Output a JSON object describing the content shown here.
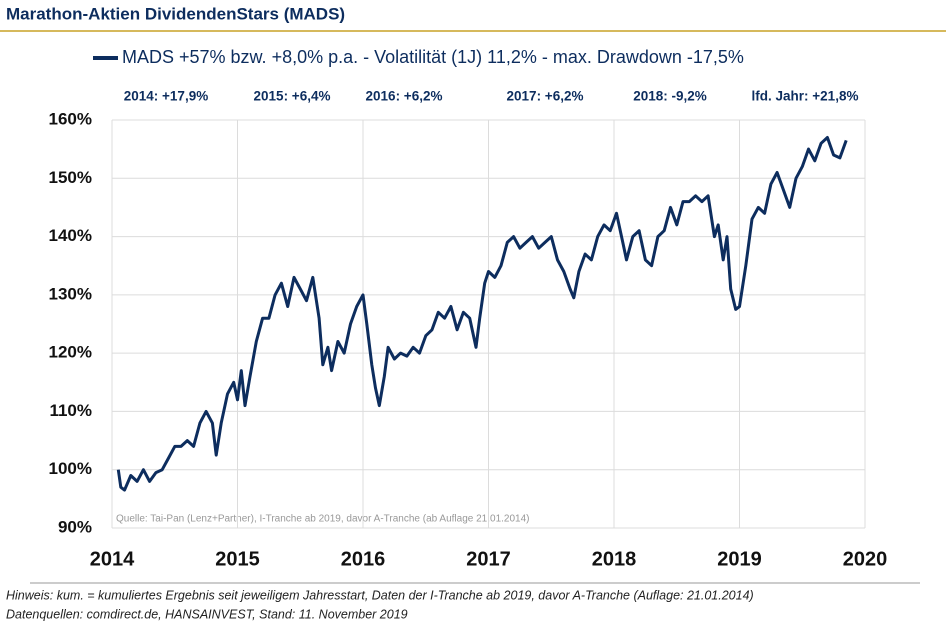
{
  "chart_data": {
    "type": "line",
    "title": "Marathon-Aktien DividendenStars (MADS)",
    "annotations": [
      "2014: +17,9%",
      "2015: +6,4%",
      "2016: +6,2%",
      "2017: +6,2%",
      "2018: -9,2%",
      "lfd. Jahr: +21,8%"
    ],
    "source_note": "Quelle: Tai-Pan (Lenz+Partner), I-Tranche ab 2019, davor A-Tranche (ab Auflage 21.01.2014)",
    "footnotes": [
      "Hinweis: kum. = kumuliertes Ergebnis seit jeweiligem Jahresstart, Daten der I-Tranche ab 2019, davor A-Tranche (Auflage: 21.01.2014)",
      "Datenquellen: comdirect.de, HANSAINVEST, Stand: 11. November 2019"
    ],
    "x": [
      2014.05,
      2014.07,
      2014.1,
      2014.15,
      2014.2,
      2014.25,
      2014.3,
      2014.35,
      2014.4,
      2014.45,
      2014.5,
      2014.55,
      2014.6,
      2014.65,
      2014.7,
      2014.75,
      2014.8,
      2014.83,
      2014.87,
      2014.92,
      2014.97,
      2015.0,
      2015.03,
      2015.06,
      2015.1,
      2015.15,
      2015.2,
      2015.25,
      2015.3,
      2015.35,
      2015.4,
      2015.45,
      2015.5,
      2015.55,
      2015.6,
      2015.65,
      2015.68,
      2015.72,
      2015.75,
      2015.8,
      2015.85,
      2015.9,
      2015.95,
      2016.0,
      2016.03,
      2016.07,
      2016.1,
      2016.13,
      2016.17,
      2016.2,
      2016.25,
      2016.3,
      2016.35,
      2016.4,
      2016.45,
      2016.5,
      2016.55,
      2016.6,
      2016.65,
      2016.7,
      2016.75,
      2016.8,
      2016.85,
      2016.9,
      2016.93,
      2016.97,
      2017.0,
      2017.05,
      2017.1,
      2017.15,
      2017.2,
      2017.25,
      2017.3,
      2017.35,
      2017.4,
      2017.45,
      2017.5,
      2017.55,
      2017.6,
      2017.65,
      2017.68,
      2017.72,
      2017.77,
      2017.82,
      2017.87,
      2017.92,
      2017.97,
      2018.02,
      2018.07,
      2018.1,
      2018.15,
      2018.2,
      2018.25,
      2018.3,
      2018.35,
      2018.4,
      2018.45,
      2018.5,
      2018.55,
      2018.6,
      2018.65,
      2018.7,
      2018.75,
      2018.8,
      2018.83,
      2018.87,
      2018.9,
      2018.93,
      2018.97,
      2019.0,
      2019.05,
      2019.1,
      2019.15,
      2019.2,
      2019.25,
      2019.3,
      2019.35,
      2019.4,
      2019.45,
      2019.5,
      2019.55,
      2019.6,
      2019.65,
      2019.7,
      2019.75,
      2019.8,
      2019.85
    ],
    "series": [
      {
        "name": "MADS +57% bzw. +8,0% p.a. - Volatilität (1J) 11,2% - max. Drawdown -17,5%",
        "color": "#0d2d5e",
        "values": [
          100,
          97,
          96.5,
          99,
          98,
          100,
          98,
          99.5,
          100,
          102,
          104,
          104,
          105,
          104,
          108,
          110,
          108,
          102.5,
          108,
          113,
          115,
          112,
          117,
          111,
          116,
          122,
          126,
          126,
          130,
          132,
          128,
          133,
          131,
          129,
          133,
          126,
          118,
          121,
          117,
          122,
          120,
          125,
          128,
          130,
          125,
          118,
          114,
          111,
          116,
          121,
          119,
          120,
          119.5,
          121,
          120,
          123,
          124,
          127,
          126,
          128,
          124,
          127,
          126,
          121,
          126,
          132,
          134,
          133,
          135,
          139,
          140,
          138,
          139,
          140,
          138,
          139,
          140,
          136,
          134,
          131,
          129.5,
          134,
          137,
          136,
          140,
          142,
          141,
          144,
          139,
          136,
          140,
          141,
          136,
          135,
          140,
          141,
          145,
          142,
          146,
          146,
          147,
          146,
          147,
          140,
          142,
          136,
          140,
          131,
          127.5,
          128,
          135,
          143,
          145,
          144,
          149,
          151,
          148,
          145,
          150,
          152,
          155,
          153,
          156,
          157,
          154,
          153.5,
          156.5
        ]
      }
    ],
    "xlim": [
      2014,
      2020
    ],
    "xticks": [
      2014,
      2015,
      2016,
      2017,
      2018,
      2019,
      2020
    ],
    "ylim": [
      90,
      160
    ],
    "yticks": [
      {
        "value": 90,
        "label": "90%"
      },
      {
        "value": 100,
        "label": "100%"
      },
      {
        "value": 110,
        "label": "110%"
      },
      {
        "value": 120,
        "label": "120%"
      },
      {
        "value": 130,
        "label": "130%"
      },
      {
        "value": 140,
        "label": "140%"
      },
      {
        "value": 150,
        "label": "150%"
      },
      {
        "value": 160,
        "label": "160%"
      }
    ],
    "grid": true
  }
}
